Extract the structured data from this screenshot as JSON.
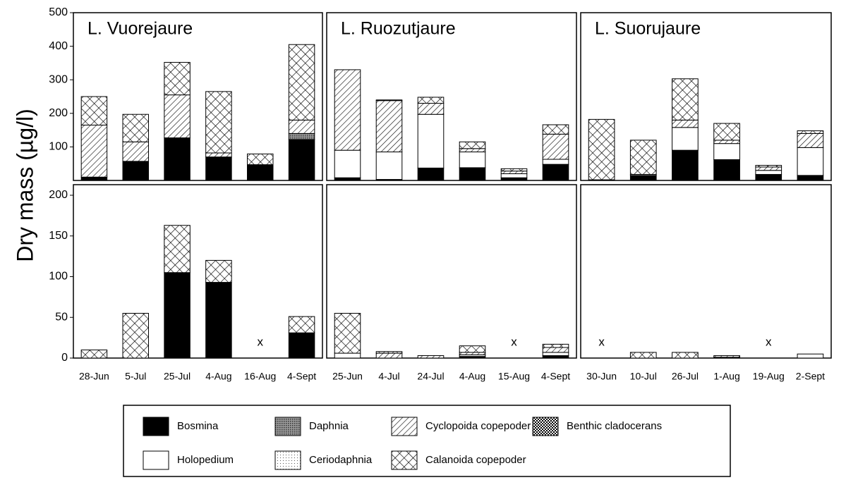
{
  "chart_data": [
    {
      "type": "bar",
      "stacked": true,
      "title": "L. Vuorejaure",
      "ylabel": "Dry mass (µg/l)",
      "ylim": [
        0,
        500
      ],
      "yticks": [
        100,
        200,
        300,
        400,
        500
      ],
      "series": [
        {
          "name": "Bosmina",
          "color": "#000000",
          "pattern": "solid",
          "values": [
            10,
            57,
            127,
            70,
            47,
            122
          ]
        },
        {
          "name": "Holopedium",
          "color": "#ffffff",
          "pattern": "solid",
          "values": [
            0,
            0,
            0,
            0,
            0,
            0
          ]
        },
        {
          "name": "Ceriodaphnia",
          "color": "#ffffff",
          "pattern": "dots",
          "values": [
            0,
            0,
            0,
            0,
            0,
            0
          ]
        },
        {
          "name": "Daphnia",
          "color": "#777777",
          "pattern": "dense",
          "values": [
            0,
            0,
            0,
            0,
            0,
            18
          ]
        },
        {
          "name": "Benthic cladocerans",
          "color": "#000000",
          "pattern": "check",
          "values": [
            0,
            0,
            0,
            0,
            0,
            0
          ]
        },
        {
          "name": "Cyclopoida copepoder",
          "color": "#000000",
          "pattern": "hatch",
          "values": [
            155,
            58,
            128,
            12,
            0,
            40
          ]
        },
        {
          "name": "Calanoida copepoder",
          "color": "#000000",
          "pattern": "cross",
          "values": [
            85,
            82,
            97,
            183,
            32,
            225
          ]
        }
      ]
    },
    {
      "type": "bar",
      "stacked": true,
      "title": "L. Ruozutjaure",
      "ylim": [
        0,
        500
      ],
      "series": [
        {
          "name": "Bosmina",
          "color": "#000000",
          "pattern": "solid",
          "values": [
            8,
            3,
            37,
            38,
            8,
            48
          ]
        },
        {
          "name": "Holopedium",
          "color": "#ffffff",
          "pattern": "solid",
          "values": [
            82,
            82,
            160,
            47,
            12,
            15
          ]
        },
        {
          "name": "Ceriodaphnia",
          "color": "#ffffff",
          "pattern": "dots",
          "values": [
            0,
            0,
            0,
            0,
            0,
            0
          ]
        },
        {
          "name": "Daphnia",
          "color": "#777777",
          "pattern": "dense",
          "values": [
            0,
            0,
            0,
            0,
            0,
            0
          ]
        },
        {
          "name": "Benthic cladocerans",
          "color": "#000000",
          "pattern": "check",
          "values": [
            0,
            0,
            0,
            0,
            0,
            0
          ]
        },
        {
          "name": "Cyclopoida copepoder",
          "color": "#000000",
          "pattern": "hatch",
          "values": [
            240,
            153,
            33,
            10,
            8,
            75
          ]
        },
        {
          "name": "Calanoida copepoder",
          "color": "#000000",
          "pattern": "cross",
          "values": [
            0,
            2,
            18,
            20,
            7,
            28
          ]
        }
      ]
    },
    {
      "type": "bar",
      "stacked": true,
      "title": "L. Suorujaure",
      "ylim": [
        0,
        500
      ],
      "series": [
        {
          "name": "Bosmina",
          "color": "#000000",
          "pattern": "solid",
          "values": [
            2,
            15,
            90,
            62,
            18,
            15
          ]
        },
        {
          "name": "Holopedium",
          "color": "#ffffff",
          "pattern": "solid",
          "values": [
            0,
            3,
            68,
            48,
            12,
            83
          ]
        },
        {
          "name": "Ceriodaphnia",
          "color": "#ffffff",
          "pattern": "dots",
          "values": [
            0,
            0,
            0,
            0,
            0,
            0
          ]
        },
        {
          "name": "Daphnia",
          "color": "#777777",
          "pattern": "dense",
          "values": [
            0,
            0,
            0,
            0,
            0,
            0
          ]
        },
        {
          "name": "Benthic cladocerans",
          "color": "#000000",
          "pattern": "check",
          "values": [
            0,
            0,
            0,
            0,
            0,
            0
          ]
        },
        {
          "name": "Cyclopoida copepoder",
          "color": "#000000",
          "pattern": "hatch",
          "values": [
            0,
            0,
            22,
            10,
            10,
            42
          ]
        },
        {
          "name": "Calanoida copepoder",
          "color": "#000000",
          "pattern": "cross",
          "values": [
            180,
            102,
            123,
            50,
            5,
            8
          ]
        }
      ]
    },
    {
      "type": "bar",
      "stacked": true,
      "ylim": [
        0,
        200
      ],
      "yticks": [
        0,
        50,
        100,
        150,
        200
      ],
      "missing_marker": "x",
      "categories": [
        "28-Jun",
        "5-Jul",
        "25-Jul",
        "4-Aug",
        "16-Aug",
        "4-Sept"
      ],
      "series": [
        {
          "name": "Bosmina",
          "color": "#000000",
          "pattern": "solid",
          "values": [
            0,
            0,
            105,
            93,
            null,
            31
          ]
        },
        {
          "name": "Holopedium",
          "color": "#ffffff",
          "pattern": "solid",
          "values": [
            0,
            0,
            0,
            0,
            null,
            0
          ]
        },
        {
          "name": "Ceriodaphnia",
          "color": "#ffffff",
          "pattern": "dots",
          "values": [
            0,
            0,
            0,
            0,
            null,
            0
          ]
        },
        {
          "name": "Daphnia",
          "color": "#777777",
          "pattern": "dense",
          "values": [
            0,
            0,
            0,
            0,
            null,
            0
          ]
        },
        {
          "name": "Benthic cladocerans",
          "color": "#000000",
          "pattern": "check",
          "values": [
            0,
            0,
            0,
            0,
            null,
            0
          ]
        },
        {
          "name": "Cyclopoida copepoder",
          "color": "#000000",
          "pattern": "hatch",
          "values": [
            0,
            0,
            0,
            0,
            null,
            0
          ]
        },
        {
          "name": "Calanoida copepoder",
          "color": "#000000",
          "pattern": "cross",
          "values": [
            10,
            55,
            58,
            27,
            null,
            20
          ]
        }
      ]
    },
    {
      "type": "bar",
      "stacked": true,
      "ylim": [
        0,
        200
      ],
      "missing_marker": "x",
      "categories": [
        "25-Jun",
        "4-Jul",
        "24-Jul",
        "4-Aug",
        "15-Aug",
        "4-Sept"
      ],
      "series": [
        {
          "name": "Bosmina",
          "color": "#000000",
          "pattern": "solid",
          "values": [
            0,
            0,
            0,
            2,
            null,
            3
          ]
        },
        {
          "name": "Holopedium",
          "color": "#ffffff",
          "pattern": "solid",
          "values": [
            6,
            0,
            0,
            2,
            null,
            4
          ]
        },
        {
          "name": "Ceriodaphnia",
          "color": "#ffffff",
          "pattern": "dots",
          "values": [
            0,
            0,
            0,
            0,
            null,
            0
          ]
        },
        {
          "name": "Daphnia",
          "color": "#777777",
          "pattern": "dense",
          "values": [
            0,
            0,
            0,
            0,
            null,
            0
          ]
        },
        {
          "name": "Benthic cladocerans",
          "color": "#000000",
          "pattern": "check",
          "values": [
            0,
            0,
            0,
            0,
            null,
            0
          ]
        },
        {
          "name": "Cyclopoida copepoder",
          "color": "#000000",
          "pattern": "hatch",
          "values": [
            0,
            6,
            3,
            3,
            null,
            6
          ]
        },
        {
          "name": "Calanoida copepoder",
          "color": "#000000",
          "pattern": "cross",
          "values": [
            49,
            2,
            0,
            8,
            null,
            4
          ]
        }
      ]
    },
    {
      "type": "bar",
      "stacked": true,
      "ylim": [
        0,
        200
      ],
      "missing_marker": "x",
      "categories": [
        "30-Jun",
        "10-Jul",
        "26-Jul",
        "1-Aug",
        "19-Aug",
        "2-Sept"
      ],
      "series": [
        {
          "name": "Bosmina",
          "color": "#000000",
          "pattern": "solid",
          "values": [
            null,
            0,
            0,
            1,
            null,
            0
          ]
        },
        {
          "name": "Holopedium",
          "color": "#ffffff",
          "pattern": "solid",
          "values": [
            null,
            0,
            0,
            0,
            null,
            5
          ]
        },
        {
          "name": "Ceriodaphnia",
          "color": "#ffffff",
          "pattern": "dots",
          "values": [
            null,
            0,
            0,
            0,
            null,
            0
          ]
        },
        {
          "name": "Daphnia",
          "color": "#777777",
          "pattern": "dense",
          "values": [
            null,
            0,
            0,
            0,
            null,
            0
          ]
        },
        {
          "name": "Benthic cladocerans",
          "color": "#000000",
          "pattern": "check",
          "values": [
            null,
            0,
            0,
            0,
            null,
            0
          ]
        },
        {
          "name": "Cyclopoida copepoder",
          "color": "#000000",
          "pattern": "hatch",
          "values": [
            null,
            0,
            0,
            2,
            null,
            0
          ]
        },
        {
          "name": "Calanoida copepoder",
          "color": "#000000",
          "pattern": "cross",
          "values": [
            null,
            7,
            7,
            0,
            null,
            0
          ]
        }
      ]
    }
  ]
}
